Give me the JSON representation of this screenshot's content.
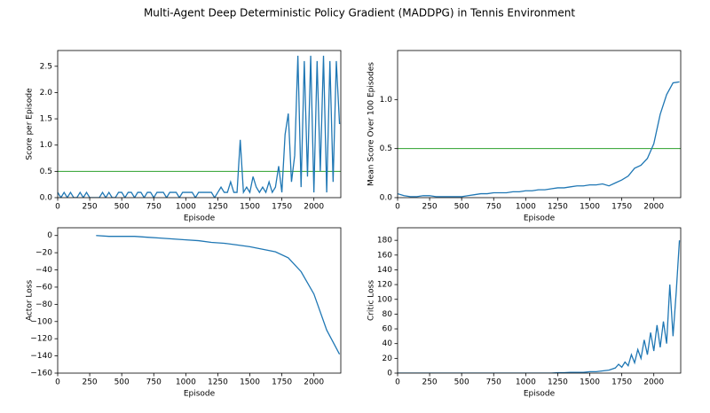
{
  "title": "Multi-Agent Deep Deterministic Policy Gradient (MADDPG) in Tennis Environment",
  "chart_data": [
    {
      "type": "line",
      "xlabel": "Episode",
      "ylabel": "Score per Episode",
      "color": "#1f77b4",
      "threshold": 0.5,
      "threshold_color": "#2ca02c",
      "xlim": [
        0,
        2210
      ],
      "ylim": [
        0,
        2.8
      ],
      "xticks": [
        0,
        250,
        500,
        750,
        1000,
        1250,
        1500,
        1750,
        2000
      ],
      "yticks": [
        {
          "value": 0,
          "label": "0.0"
        },
        {
          "value": 0.5,
          "label": "0.5"
        },
        {
          "value": 1,
          "label": "1.0"
        },
        {
          "value": 1.5,
          "label": "1.5"
        },
        {
          "value": 2,
          "label": "2.0"
        },
        {
          "value": 2.5,
          "label": "2.5"
        }
      ],
      "x": [
        0,
        25,
        50,
        75,
        100,
        125,
        150,
        175,
        200,
        225,
        250,
        275,
        300,
        325,
        350,
        375,
        400,
        425,
        450,
        475,
        500,
        525,
        550,
        575,
        600,
        625,
        650,
        675,
        700,
        725,
        750,
        775,
        800,
        825,
        850,
        875,
        900,
        925,
        950,
        975,
        1000,
        1025,
        1050,
        1075,
        1100,
        1125,
        1150,
        1175,
        1200,
        1225,
        1250,
        1275,
        1300,
        1325,
        1350,
        1375,
        1400,
        1425,
        1450,
        1475,
        1500,
        1525,
        1550,
        1575,
        1600,
        1625,
        1650,
        1675,
        1700,
        1725,
        1750,
        1775,
        1800,
        1825,
        1850,
        1875,
        1900,
        1925,
        1950,
        1975,
        2000,
        2025,
        2050,
        2075,
        2100,
        2125,
        2150,
        2175,
        2200
      ],
      "values": [
        0.1,
        0,
        0.1,
        0,
        0.1,
        0,
        0,
        0.1,
        0,
        0.1,
        0,
        0,
        0,
        0,
        0.1,
        0,
        0.1,
        0,
        0,
        0.1,
        0.1,
        0,
        0.1,
        0.1,
        0,
        0.1,
        0.1,
        0,
        0.1,
        0.1,
        0,
        0.1,
        0.1,
        0.1,
        0,
        0.1,
        0.1,
        0.1,
        0,
        0.1,
        0.1,
        0.1,
        0.1,
        0,
        0.1,
        0.1,
        0.1,
        0.1,
        0.1,
        0,
        0.1,
        0.2,
        0.1,
        0.1,
        0.3,
        0.1,
        0.1,
        1.1,
        0.1,
        0.2,
        0.1,
        0.4,
        0.2,
        0.1,
        0.2,
        0.1,
        0.3,
        0.1,
        0.2,
        0.6,
        0.1,
        1.2,
        1.6,
        0.3,
        0.8,
        2.7,
        0.2,
        2.6,
        0.4,
        2.7,
        0.1,
        2.6,
        0.5,
        2.7,
        0.1,
        2.6,
        0.3,
        2.6,
        1.4
      ]
    },
    {
      "type": "line",
      "xlabel": "Episode",
      "ylabel": "Mean Score Over 100 Episodes",
      "color": "#1f77b4",
      "threshold": 0.5,
      "threshold_color": "#2ca02c",
      "xlim": [
        0,
        2210
      ],
      "ylim": [
        0,
        1.5
      ],
      "xticks": [
        0,
        250,
        500,
        750,
        1000,
        1250,
        1500,
        1750,
        2000
      ],
      "yticks": [
        {
          "value": 0,
          "label": "0.0"
        },
        {
          "value": 0.5,
          "label": "0.5"
        },
        {
          "value": 1,
          "label": "1.0"
        }
      ],
      "x": [
        0,
        50,
        100,
        150,
        200,
        250,
        300,
        350,
        400,
        450,
        500,
        550,
        600,
        650,
        700,
        750,
        800,
        850,
        900,
        950,
        1000,
        1050,
        1100,
        1150,
        1200,
        1250,
        1300,
        1350,
        1400,
        1450,
        1500,
        1550,
        1600,
        1650,
        1700,
        1750,
        1800,
        1850,
        1900,
        1950,
        2000,
        2050,
        2100,
        2150,
        2200
      ],
      "values": [
        0.04,
        0.02,
        0.01,
        0.01,
        0.02,
        0.02,
        0.01,
        0.01,
        0.01,
        0.01,
        0.01,
        0.02,
        0.03,
        0.04,
        0.04,
        0.05,
        0.05,
        0.05,
        0.06,
        0.06,
        0.07,
        0.07,
        0.08,
        0.08,
        0.09,
        0.1,
        0.1,
        0.11,
        0.12,
        0.12,
        0.13,
        0.13,
        0.14,
        0.12,
        0.15,
        0.18,
        0.22,
        0.3,
        0.33,
        0.4,
        0.55,
        0.85,
        1.05,
        1.17,
        1.18
      ]
    },
    {
      "type": "line",
      "xlabel": "Episode",
      "ylabel": "Actor Loss",
      "color": "#1f77b4",
      "xlim": [
        0,
        2210
      ],
      "ylim": [
        -160,
        9
      ],
      "xticks": [
        0,
        250,
        500,
        750,
        1000,
        1250,
        1500,
        1750,
        2000
      ],
      "yticks": [
        0,
        {
          "value": -20,
          "label": "−20"
        },
        {
          "value": -40,
          "label": "−40"
        },
        {
          "value": -60,
          "label": "−60"
        },
        {
          "value": -80,
          "label": "−80"
        },
        {
          "value": -100,
          "label": "−100"
        },
        {
          "value": -120,
          "label": "−120"
        },
        {
          "value": -140,
          "label": "−140"
        },
        {
          "value": -160,
          "label": "−160"
        }
      ],
      "x": [
        300,
        400,
        500,
        600,
        700,
        800,
        900,
        1000,
        1100,
        1200,
        1300,
        1400,
        1500,
        1600,
        1700,
        1800,
        1900,
        2000,
        2100,
        2200
      ],
      "values": [
        0,
        -1,
        -1,
        -1,
        -2,
        -3,
        -4,
        -5,
        -6,
        -8,
        -9,
        -11,
        -13,
        -16,
        -19,
        -26,
        -42,
        -68,
        -110,
        -138
      ]
    },
    {
      "type": "line",
      "xlabel": "Episode",
      "ylabel": "Critic Loss",
      "color": "#1f77b4",
      "xlim": [
        0,
        2210
      ],
      "ylim": [
        0,
        197
      ],
      "xticks": [
        0,
        250,
        500,
        750,
        1000,
        1250,
        1500,
        1750,
        2000
      ],
      "yticks": [
        0,
        20,
        40,
        60,
        80,
        100,
        120,
        140,
        160,
        180
      ],
      "x": [
        0,
        50,
        100,
        150,
        200,
        250,
        300,
        350,
        400,
        450,
        500,
        550,
        600,
        650,
        700,
        750,
        800,
        850,
        900,
        950,
        1000,
        1050,
        1100,
        1150,
        1200,
        1250,
        1300,
        1350,
        1400,
        1450,
        1500,
        1550,
        1600,
        1650,
        1700,
        1725,
        1750,
        1775,
        1800,
        1825,
        1850,
        1875,
        1900,
        1925,
        1950,
        1975,
        2000,
        2025,
        2050,
        2075,
        2100,
        2125,
        2150,
        2175,
        2200
      ],
      "values": [
        0,
        0,
        0,
        0,
        0,
        0,
        0,
        0,
        0,
        0,
        0,
        0,
        0,
        0,
        0,
        0,
        0,
        0,
        0,
        0,
        0,
        0,
        0,
        0,
        0,
        0.5,
        0.5,
        1,
        1,
        1,
        2,
        2,
        3,
        4,
        7,
        12,
        8,
        15,
        10,
        25,
        14,
        32,
        20,
        45,
        25,
        55,
        30,
        65,
        35,
        70,
        40,
        120,
        50,
        110,
        180
      ]
    }
  ]
}
